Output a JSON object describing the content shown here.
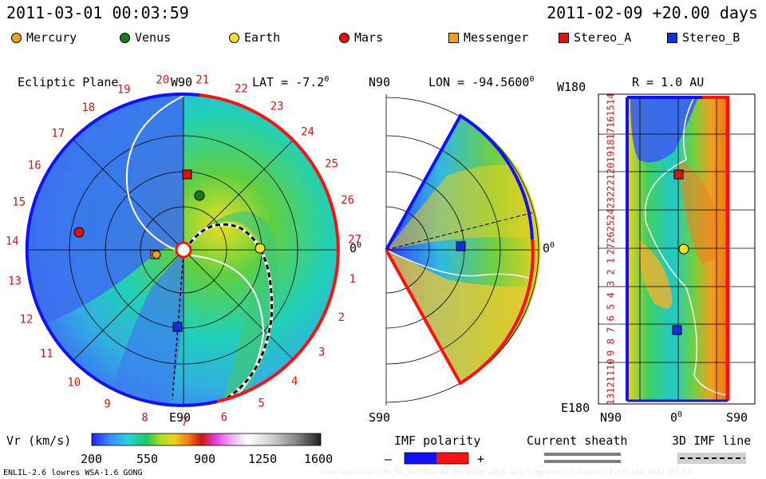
{
  "header": {
    "run_datetime": "2011-03-01 00:03:59",
    "forecast_time": "2011-02-09 +20.00 days"
  },
  "legend": [
    {
      "label": "Mercury",
      "shape": "circle",
      "color": "#f0a020"
    },
    {
      "label": "Venus",
      "shape": "circle",
      "color": "#1a7a1a"
    },
    {
      "label": "Earth",
      "shape": "circle",
      "color": "#f5e21a"
    },
    {
      "label": "Mars",
      "shape": "circle",
      "color": "#e01010"
    },
    {
      "label": "Messenger",
      "shape": "square",
      "color": "#f0a020"
    },
    {
      "label": "Stereo_A",
      "shape": "square",
      "color": "#e01010"
    },
    {
      "label": "Stereo_B",
      "shape": "square",
      "color": "#1030e0"
    }
  ],
  "ecliptic": {
    "title": "Ecliptic Plane",
    "top_label": "W90",
    "bottom_label": "E90",
    "right_label": "0",
    "lat_label": "LAT = -7.2",
    "degree_mark": "0",
    "carrington_days": [
      "20",
      "21",
      "22",
      "23",
      "24",
      "25",
      "26",
      "27",
      "1",
      "2",
      "3",
      "4",
      "5",
      "6",
      "7",
      "8",
      "9",
      "10",
      "11",
      "12",
      "13",
      "14",
      "15",
      "16",
      "17",
      "18",
      "19"
    ]
  },
  "meridional": {
    "top_label": "N90",
    "bottom_label": "S90",
    "lon_label": "LON = -94.5600",
    "degree_mark": "0",
    "right_label": "0",
    "right_degree": "0"
  },
  "longitude_panel": {
    "top_left_label": "W180",
    "title": "R = 1.0 AU",
    "bottom_left_label": "E180",
    "x_labels": [
      "N90",
      "0",
      "S90"
    ],
    "x_degree_mark": "0",
    "y_labels": [
      "14",
      "15",
      "16",
      "17",
      "18",
      "19",
      "20",
      "21",
      "22",
      "23",
      "24",
      "25",
      "26",
      "27",
      "1",
      "2",
      "3",
      "4",
      "5",
      "6",
      "7",
      "8",
      "9",
      "10",
      "11",
      "12",
      "13"
    ]
  },
  "colorbar": {
    "label": "Vr (km/s)",
    "ticks": [
      "200",
      "550",
      "900",
      "1250",
      "1600"
    ],
    "stops": [
      "#2020ff",
      "#3a8cff",
      "#20d8d8",
      "#20c860",
      "#a8e020",
      "#f0d020",
      "#f08010",
      "#c81810",
      "#e040e0",
      "#f0a0f0",
      "#ffffff",
      "#c8c8c8",
      "#808080",
      "#202020"
    ]
  },
  "imf_polarity": {
    "title": "IMF polarity",
    "minus": "–",
    "plus": "+",
    "minus_color": "#1010ff",
    "plus_color": "#ff1010"
  },
  "current_sheath": {
    "title": "Current sheath"
  },
  "imf_line": {
    "title": "3D IMF line"
  },
  "footer": {
    "model": "ENLIL-2.6 lowres WSA-1.6 GONG",
    "watermark": "cone/wsa-old/256-30-30/2011-02-09-gong-a2b3-ap1.5-mpa/enlil-lowres-1.tfiles   2011-03-04"
  }
}
